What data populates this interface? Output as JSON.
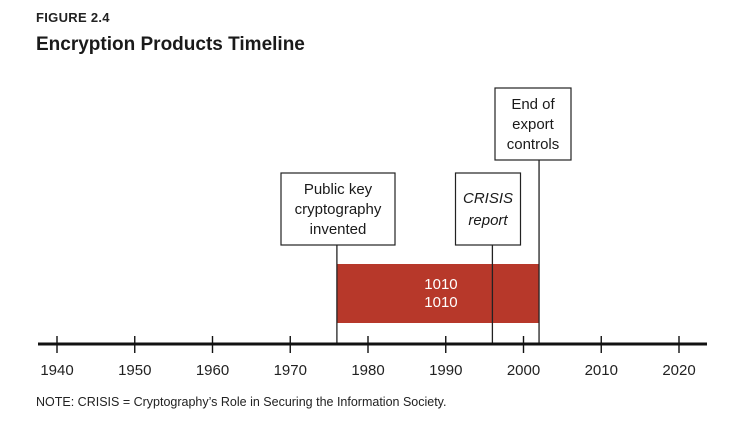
{
  "figure": {
    "label": "FIGURE 2.4",
    "title": "Encryption Products Timeline",
    "note": "NOTE: CRISIS = Cryptography’s Role in Securing the Information Society."
  },
  "timeline": {
    "range": [
      1935,
      2025
    ],
    "ticks": [
      1940,
      1950,
      1960,
      1970,
      1980,
      1990,
      2000,
      2010,
      2020
    ],
    "period_bar": {
      "start_year": 1976,
      "end_year": 2002,
      "text_lines": [
        "1010",
        "1010"
      ],
      "color": "#b7382a"
    },
    "events": [
      {
        "id": "public-key",
        "year": 1976,
        "lines": [
          "Public key",
          "cryptography",
          "invented"
        ],
        "italic": false
      },
      {
        "id": "crisis-report",
        "year": 1996,
        "lines": [
          "CRISIS",
          "report"
        ],
        "italic": true
      },
      {
        "id": "export-controls",
        "year": 2002,
        "lines": [
          "End of",
          "export",
          "controls"
        ],
        "italic": false
      }
    ]
  }
}
